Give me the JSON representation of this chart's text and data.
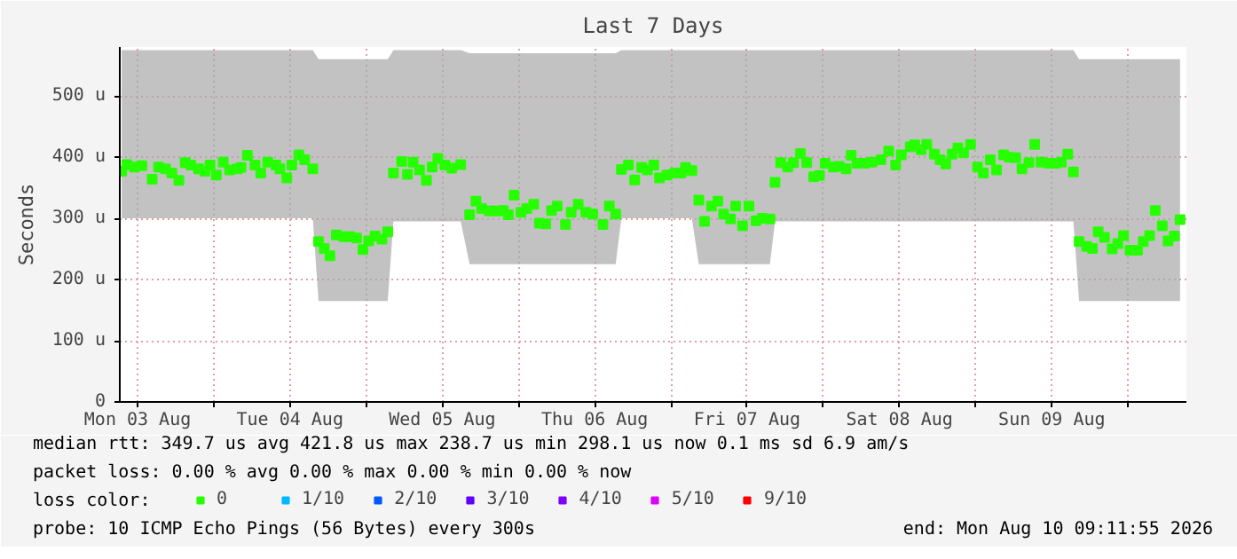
{
  "chart_data": {
    "type": "scatter",
    "title": "Last 7 Days",
    "ylabel": "Seconds",
    "xlim": [
      "2026-08-03T09:12",
      "2026-08-10T09:12"
    ],
    "ylim": [
      0,
      580
    ],
    "xticks": [
      {
        "value": "2026-08-03T12:00",
        "label": "Mon 03 Aug"
      },
      {
        "value": "2026-08-04T00:00",
        "label": null
      },
      {
        "value": "2026-08-04T12:00",
        "label": "Tue 04 Aug"
      },
      {
        "value": "2026-08-05T00:00",
        "label": null
      },
      {
        "value": "2026-08-05T12:00",
        "label": "Wed 05 Aug"
      },
      {
        "value": "2026-08-06T00:00",
        "label": null
      },
      {
        "value": "2026-08-06T12:00",
        "label": "Thu 06 Aug"
      },
      {
        "value": "2026-08-07T00:00",
        "label": null
      },
      {
        "value": "2026-08-07T12:00",
        "label": "Fri 07 Aug"
      },
      {
        "value": "2026-08-08T00:00",
        "label": null
      },
      {
        "value": "2026-08-08T12:00",
        "label": "Sat 08 Aug"
      },
      {
        "value": "2026-08-09T00:00",
        "label": null
      },
      {
        "value": "2026-08-09T12:00",
        "label": "Sun 09 Aug"
      },
      {
        "value": "2026-08-10T00:00",
        "label": null
      }
    ],
    "yticks": [
      0,
      {
        "value": 100,
        "label": "100 u"
      },
      {
        "value": 200,
        "label": "200 u"
      },
      {
        "value": 300,
        "label": "300 u"
      },
      {
        "value": 400,
        "label": "400 u"
      },
      {
        "value": 500,
        "label": "500 u"
      }
    ],
    "grid": true,
    "marker": "square",
    "legend": "bottom",
    "legend_title": "loss color:",
    "annotations": [
      "median rtt:  349.7 us avg  421.8 us max  238.7 us min  298.1 us now  0.1 ms sd  6.9   am/s",
      "packet loss: 0.00 % avg  0.00 % max  0.00 % min  0.00 % now",
      "probe:       10 ICMP Echo Pings (56 Bytes) every 300s",
      "end: Mon Aug 10 09:11:55 2026"
    ],
    "series": [
      {
        "name": "0",
        "color": "#26ff00",
        "x": [
          "2026-08-03T09:30",
          "2026-08-03T10:18",
          "2026-08-03T11:30",
          "2026-08-03T12:42",
          "2026-08-03T14:18",
          "2026-08-03T15:18",
          "2026-08-03T16:24",
          "2026-08-03T17:24",
          "2026-08-03T18:30",
          "2026-08-03T19:30",
          "2026-08-03T20:24",
          "2026-08-03T21:36",
          "2026-08-03T22:36",
          "2026-08-03T23:24",
          "2026-08-04T00:24",
          "2026-08-04T01:30",
          "2026-08-04T02:30",
          "2026-08-04T03:42",
          "2026-08-04T04:18",
          "2026-08-04T05:18",
          "2026-08-04T06:30",
          "2026-08-04T07:24",
          "2026-08-04T08:30",
          "2026-08-04T09:48",
          "2026-08-04T10:24",
          "2026-08-04T11:30",
          "2026-08-04T12:18",
          "2026-08-04T13:24",
          "2026-08-04T14:18",
          "2026-08-04T15:36",
          "2026-08-04T16:30",
          "2026-08-04T17:24",
          "2026-08-04T18:18",
          "2026-08-04T19:18",
          "2026-08-04T20:30",
          "2026-08-04T21:24",
          "2026-08-04T22:30",
          "2026-08-04T23:30",
          "2026-08-05T00:24",
          "2026-08-05T01:24",
          "2026-08-05T02:30",
          "2026-08-05T03:24",
          "2026-08-05T04:18",
          "2026-08-05T05:36",
          "2026-08-05T06:30",
          "2026-08-05T07:24",
          "2026-08-05T08:24",
          "2026-08-05T09:30",
          "2026-08-05T10:24",
          "2026-08-05T11:18",
          "2026-08-05T12:24",
          "2026-08-05T13:30",
          "2026-08-05T14:54",
          "2026-08-05T16:18",
          "2026-08-05T17:18",
          "2026-08-05T18:12",
          "2026-08-05T19:24",
          "2026-08-05T20:36",
          "2026-08-05T21:36",
          "2026-08-05T22:24",
          "2026-08-05T23:18",
          "2026-08-06T00:24",
          "2026-08-06T01:18",
          "2026-08-06T02:24",
          "2026-08-06T03:18",
          "2026-08-06T04:18",
          "2026-08-06T05:12",
          "2026-08-06T06:06",
          "2026-08-06T07:24",
          "2026-08-06T08:18",
          "2026-08-06T09:24",
          "2026-08-06T10:36",
          "2026-08-06T11:42",
          "2026-08-06T13:18",
          "2026-08-06T14:18",
          "2026-08-06T15:18",
          "2026-08-06T16:12",
          "2026-08-06T17:18",
          "2026-08-06T18:18",
          "2026-08-06T19:24",
          "2026-08-06T20:18",
          "2026-08-06T21:18",
          "2026-08-06T22:12",
          "2026-08-06T23:24",
          "2026-08-07T00:36",
          "2026-08-07T01:36",
          "2026-08-07T02:18",
          "2026-08-07T03:18",
          "2026-08-07T04:24",
          "2026-08-07T05:18",
          "2026-08-07T06:24",
          "2026-08-07T07:24",
          "2026-08-07T08:18",
          "2026-08-07T09:24",
          "2026-08-07T10:12",
          "2026-08-07T11:18",
          "2026-08-07T12:18",
          "2026-08-07T13:24",
          "2026-08-07T14:24",
          "2026-08-07T15:36",
          "2026-08-07T16:24",
          "2026-08-07T17:18",
          "2026-08-07T18:24",
          "2026-08-07T19:18",
          "2026-08-07T20:24",
          "2026-08-07T21:24",
          "2026-08-07T22:30",
          "2026-08-07T23:24",
          "2026-08-08T00:18",
          "2026-08-08T01:36",
          "2026-08-08T02:30",
          "2026-08-08T03:36",
          "2026-08-08T04:24",
          "2026-08-08T05:18",
          "2026-08-08T06:30",
          "2026-08-08T07:42",
          "2026-08-08T09:06",
          "2026-08-08T10:18",
          "2026-08-08T11:24",
          "2026-08-08T12:18",
          "2026-08-08T13:42",
          "2026-08-08T14:24",
          "2026-08-08T15:24",
          "2026-08-08T16:18",
          "2026-08-08T17:30",
          "2026-08-08T18:24",
          "2026-08-08T19:18",
          "2026-08-08T20:18",
          "2026-08-08T21:12",
          "2026-08-08T22:06",
          "2026-08-08T23:12",
          "2026-08-09T00:18",
          "2026-08-09T01:12",
          "2026-08-09T02:18",
          "2026-08-09T03:18",
          "2026-08-09T04:24",
          "2026-08-09T05:18",
          "2026-08-09T06:18",
          "2026-08-09T07:18",
          "2026-08-09T08:24",
          "2026-08-09T09:18",
          "2026-08-09T10:18",
          "2026-08-09T11:30",
          "2026-08-09T12:36",
          "2026-08-09T13:30",
          "2026-08-09T14:30",
          "2026-08-09T15:24",
          "2026-08-09T16:18",
          "2026-08-09T17:30",
          "2026-08-09T18:24",
          "2026-08-09T19:18",
          "2026-08-09T20:18",
          "2026-08-09T21:30",
          "2026-08-09T22:24",
          "2026-08-09T23:18",
          "2026-08-10T00:18",
          "2026-08-10T01:30",
          "2026-08-10T02:24",
          "2026-08-10T03:24",
          "2026-08-10T04:18",
          "2026-08-10T05:24",
          "2026-08-10T06:18",
          "2026-08-10T07:18",
          "2026-08-10T08:12"
        ],
        "values": [
          377,
          388,
          384,
          386,
          364,
          384,
          381,
          374,
          362,
          391,
          387,
          381,
          377,
          387,
          371,
          392,
          379,
          381,
          383,
          403,
          387,
          374,
          392,
          387,
          381,
          366,
          387,
          404,
          396,
          381,
          262,
          251,
          239,
          273,
          270,
          270,
          268,
          249,
          263,
          271,
          266,
          278,
          374,
          393,
          372,
          392,
          379,
          362,
          384,
          398,
          387,
          382,
          388,
          306,
          328,
          316,
          312,
          312,
          313,
          306,
          338,
          310,
          316,
          323,
          292,
          291,
          313,
          320,
          290,
          310,
          323,
          310,
          307,
          290,
          320,
          307,
          380,
          387,
          363,
          383,
          379,
          387,
          366,
          371,
          374,
          374,
          383,
          378,
          330,
          295,
          320,
          328,
          307,
          299,
          320,
          288,
          320,
          296,
          300,
          299,
          359,
          391,
          384,
          391,
          406,
          391,
          368,
          370,
          390,
          384,
          385,
          381,
          403,
          390,
          390,
          392,
          396,
          410,
          387,
          404,
          417,
          420,
          412,
          421,
          405,
          396,
          389,
          405,
          415,
          407,
          421,
          384,
          374,
          396,
          379,
          404,
          400,
          399,
          381,
          391,
          421,
          392,
          390,
          390,
          392,
          405,
          376,
          262,
          254,
          251,
          278,
          269,
          250,
          259,
          272,
          248,
          248,
          262,
          272,
          313,
          288,
          263,
          271,
          298
        ],
        "lower": [
          300,
          300,
          300,
          300,
          300,
          300,
          300,
          300,
          300,
          300,
          300,
          300,
          300,
          300,
          300,
          300,
          300,
          300,
          300,
          300,
          300,
          300,
          300,
          300,
          300,
          300,
          300,
          300,
          300,
          300,
          165,
          165,
          165,
          165,
          165,
          165,
          165,
          165,
          165,
          165,
          165,
          165,
          295,
          295,
          295,
          295,
          295,
          295,
          295,
          295,
          295,
          295,
          295,
          225,
          225,
          225,
          225,
          225,
          225,
          225,
          225,
          225,
          225,
          225,
          225,
          225,
          225,
          225,
          225,
          225,
          225,
          225,
          225,
          225,
          225,
          225,
          300,
          300,
          300,
          300,
          300,
          300,
          300,
          300,
          300,
          300,
          300,
          300,
          225,
          225,
          225,
          225,
          225,
          225,
          225,
          225,
          225,
          225,
          225,
          225,
          295,
          295,
          295,
          295,
          295,
          295,
          295,
          295,
          295,
          295,
          295,
          295,
          295,
          295,
          295,
          295,
          295,
          295,
          295,
          295,
          295,
          295,
          295,
          295,
          295,
          295,
          295,
          295,
          295,
          295,
          295,
          295,
          295,
          295,
          295,
          295,
          295,
          295,
          295,
          295,
          295,
          295,
          295,
          295,
          295,
          295,
          295,
          165,
          165,
          165,
          165,
          165,
          165,
          165,
          165,
          165,
          165,
          165,
          165,
          165,
          165,
          165,
          165,
          165
        ],
        "upper": [
          575,
          575,
          575,
          575,
          575,
          575,
          575,
          575,
          575,
          575,
          575,
          575,
          575,
          575,
          575,
          575,
          575,
          575,
          575,
          575,
          575,
          575,
          575,
          575,
          575,
          575,
          575,
          575,
          575,
          575,
          560,
          560,
          560,
          560,
          560,
          560,
          560,
          560,
          560,
          560,
          560,
          560,
          575,
          575,
          575,
          575,
          575,
          575,
          575,
          575,
          575,
          575,
          575,
          570,
          570,
          570,
          570,
          570,
          570,
          570,
          570,
          570,
          570,
          570,
          570,
          570,
          570,
          570,
          570,
          570,
          570,
          570,
          570,
          570,
          570,
          570,
          575,
          575,
          575,
          575,
          575,
          575,
          575,
          575,
          575,
          575,
          575,
          575,
          575,
          575,
          575,
          575,
          575,
          575,
          575,
          575,
          575,
          575,
          575,
          575,
          575,
          575,
          575,
          575,
          575,
          575,
          575,
          575,
          575,
          575,
          575,
          575,
          575,
          575,
          575,
          575,
          575,
          575,
          575,
          575,
          575,
          575,
          575,
          575,
          575,
          575,
          575,
          575,
          575,
          575,
          575,
          575,
          575,
          575,
          575,
          575,
          575,
          575,
          575,
          575,
          575,
          575,
          575,
          575,
          575,
          575,
          575,
          560,
          560,
          560,
          560,
          560,
          560,
          560,
          560,
          560,
          560,
          560,
          560,
          560,
          560,
          560,
          560,
          560
        ]
      },
      {
        "name": "1/10",
        "color": "#00b8ff"
      },
      {
        "name": "2/10",
        "color": "#0059ff"
      },
      {
        "name": "3/10",
        "color": "#5e00ff"
      },
      {
        "name": "4/10",
        "color": "#7e00ff"
      },
      {
        "name": "5/10",
        "color": "#dd00ff"
      },
      {
        "name": "9/10",
        "color": "#ff0000"
      }
    ]
  }
}
